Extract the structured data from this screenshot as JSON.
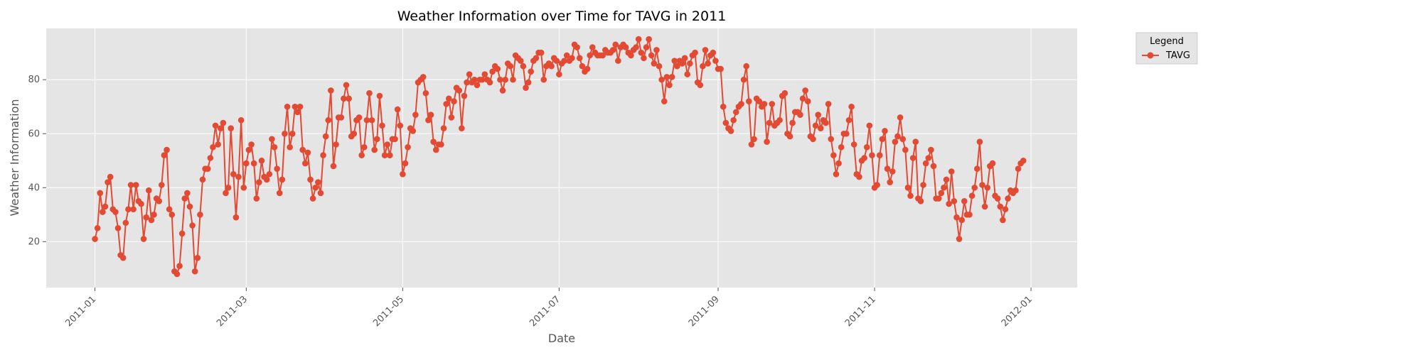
{
  "chart_data": {
    "type": "line",
    "title": "Weather Information over Time for TAVG in 2011",
    "xlabel": "Date",
    "ylabel": "Weather Information",
    "x_ticks": [
      "2011-01",
      "2011-03",
      "2011-05",
      "2011-07",
      "2011-09",
      "2011-11",
      "2012-01"
    ],
    "y_ticks": [
      20,
      40,
      60,
      80
    ],
    "xlim": [
      "2010-12-13",
      "2012-01-19"
    ],
    "ylim": [
      3,
      99
    ],
    "grid": true,
    "legend_title": "Legend",
    "legend_position": "outside-top-right",
    "series_color": "#E24A33",
    "x_start": "2011-01-01",
    "x_step": "1 day",
    "series": [
      {
        "name": "TAVG",
        "values": [
          21,
          25,
          38,
          31,
          33,
          42,
          44,
          32,
          31,
          25,
          15,
          14,
          27,
          32,
          41,
          32,
          41,
          35,
          34,
          21,
          29,
          39,
          28,
          30,
          36,
          35,
          41,
          52,
          54,
          32,
          30,
          9,
          8,
          11,
          23,
          36,
          38,
          33,
          26,
          9,
          14,
          30,
          43,
          47,
          47,
          51,
          55,
          63,
          56,
          62,
          64,
          38,
          40,
          62,
          45,
          29,
          44,
          65,
          40,
          49,
          54,
          56,
          49,
          36,
          42,
          50,
          44,
          43,
          45,
          58,
          55,
          47,
          38,
          43,
          60,
          70,
          55,
          60,
          70,
          68,
          70,
          54,
          49,
          53,
          43,
          36,
          40,
          42,
          38,
          52,
          59,
          65,
          76,
          48,
          56,
          66,
          66,
          73,
          78,
          73,
          59,
          60,
          65,
          66,
          52,
          55,
          65,
          75,
          65,
          54,
          58,
          74,
          63,
          52,
          56,
          52,
          58,
          58,
          69,
          63,
          45,
          49,
          55,
          62,
          61,
          67,
          79,
          80,
          81,
          75,
          65,
          67,
          57,
          54,
          56,
          56,
          62,
          71,
          73,
          66,
          72,
          77,
          76,
          62,
          74,
          79,
          82,
          79,
          80,
          78,
          80,
          80,
          82,
          80,
          79,
          83,
          85,
          84,
          80,
          76,
          80,
          86,
          85,
          80,
          89,
          88,
          87,
          85,
          77,
          79,
          83,
          87,
          88,
          90,
          90,
          80,
          85,
          86,
          85,
          88,
          87,
          82,
          86,
          87,
          89,
          87,
          88,
          93,
          92,
          88,
          85,
          83,
          84,
          89,
          92,
          90,
          89,
          89,
          89,
          91,
          90,
          90,
          91,
          93,
          87,
          92,
          93,
          92,
          90,
          89,
          91,
          92,
          95,
          90,
          88,
          92,
          95,
          89,
          86,
          91,
          85,
          80,
          72,
          81,
          78,
          81,
          87,
          85,
          87,
          86,
          88,
          82,
          86,
          89,
          90,
          79,
          78,
          85,
          91,
          86,
          89,
          90,
          87,
          84,
          84,
          70,
          64,
          62,
          61,
          65,
          68,
          70,
          71,
          80,
          85,
          72,
          56,
          58,
          73,
          72,
          70,
          71,
          57,
          64,
          71,
          63,
          64,
          65,
          74,
          75,
          60,
          59,
          64,
          68,
          68,
          67,
          73,
          76,
          72,
          59,
          58,
          63,
          67,
          62,
          65,
          64,
          71,
          58,
          52,
          45,
          49,
          55,
          60,
          60,
          65,
          70,
          56,
          45,
          44,
          50,
          51,
          55,
          63,
          52,
          40,
          41,
          52,
          58,
          61,
          47,
          42,
          46,
          57,
          59,
          66,
          58,
          54,
          40,
          37,
          51,
          57,
          36,
          35,
          41,
          49,
          51,
          54,
          48,
          36,
          36,
          38,
          40,
          43,
          34,
          46,
          35,
          29,
          21,
          28,
          35,
          30,
          30,
          37,
          40,
          47,
          57,
          41,
          33,
          40,
          48,
          49,
          37,
          36,
          33,
          28,
          32,
          36,
          39,
          38,
          39,
          47,
          49,
          50
        ]
      }
    ]
  }
}
